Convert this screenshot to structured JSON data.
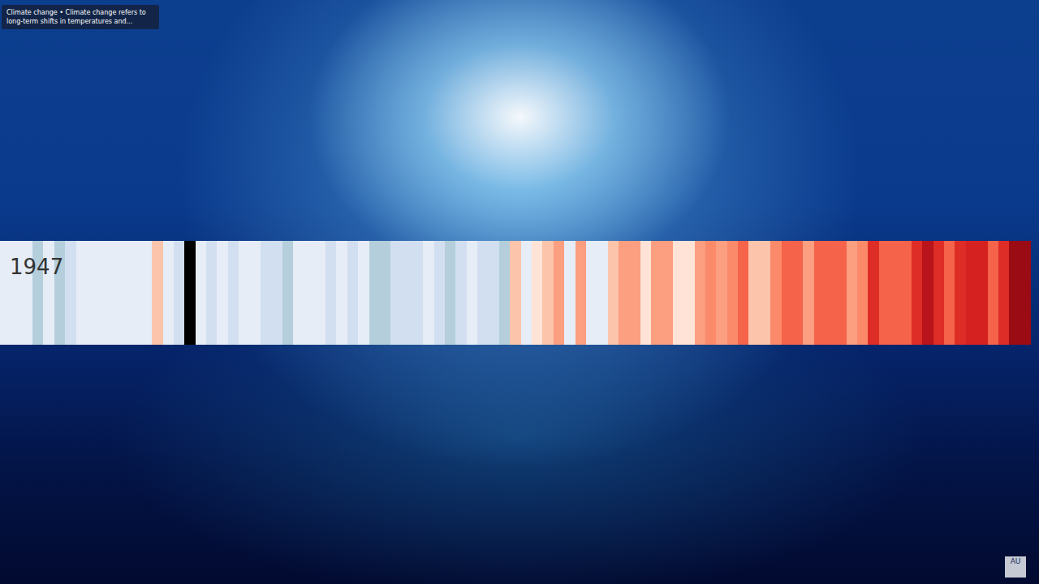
{
  "chart_data": {
    "type": "bar",
    "categories": [
      null,
      null,
      null,
      null,
      null,
      null,
      null,
      null,
      null,
      null,
      null,
      null,
      null,
      null,
      null,
      null,
      null,
      null,
      null,
      null,
      null,
      null,
      null,
      null,
      null,
      null,
      null,
      null,
      null,
      null,
      null,
      null,
      null,
      null,
      null,
      null,
      null,
      null,
      null,
      null,
      null,
      null,
      null,
      null,
      null,
      null,
      null,
      null,
      null,
      null,
      null,
      null,
      null,
      null,
      null,
      null,
      null,
      null,
      null,
      null,
      null,
      null,
      null,
      null,
      null,
      null,
      null,
      null,
      null,
      null,
      null,
      null,
      null,
      null,
      null,
      null,
      null,
      null,
      null,
      null,
      null,
      null,
      null,
      null,
      null,
      null,
      null,
      null,
      null,
      null,
      null,
      null,
      null,
      null,
      null
    ],
    "values": [
      1,
      1,
      1,
      1,
      1,
      1,
      1,
      1,
      1,
      1,
      1,
      1,
      1,
      1,
      1,
      1,
      1,
      1,
      1,
      1,
      1,
      1,
      1,
      1,
      1,
      1,
      1,
      1,
      1,
      1,
      1,
      1,
      1,
      1,
      1,
      1,
      1,
      1,
      1,
      1,
      1,
      1,
      1,
      1,
      1,
      1,
      1,
      1,
      1,
      1,
      1,
      1,
      1,
      1,
      1,
      1,
      1,
      1,
      1,
      1,
      1,
      1,
      1,
      1,
      1,
      1,
      1,
      1,
      1,
      1,
      1,
      1,
      1,
      1,
      1,
      1,
      1,
      1,
      1,
      1,
      1,
      1,
      1,
      1,
      1,
      1,
      1,
      1,
      1,
      1,
      1,
      1,
      1,
      1,
      1
    ],
    "colors": [
      "#e6edf7",
      "#e6edf7",
      "#e6edf7",
      "#b4cfdb",
      "#e6edf7",
      "#b4cfdb",
      "#d2dff0",
      "#e6edf7",
      "#e6edf7",
      "#e6edf7",
      "#e6edf7",
      "#e6edf7",
      "#e6edf7",
      "#e6edf7",
      "#fcc5ab",
      "#e6edf7",
      "#d2dff0",
      "#000000",
      "#e6edf7",
      "#d2dff0",
      "#e6edf7",
      "#d2dff0",
      "#e6edf7",
      "#e6edf7",
      "#d2dff0",
      "#d2dff0",
      "#b4cfdb",
      "#e6edf7",
      "#e6edf7",
      "#e6edf7",
      "#d2dff0",
      "#e6edf7",
      "#d2dff0",
      "#e6edf7",
      "#b4cfdb",
      "#b4cfdb",
      "#d2dff0",
      "#d2dff0",
      "#d2dff0",
      "#e6edf7",
      "#d2dff0",
      "#b4cfdb",
      "#d2dff0",
      "#e6edf7",
      "#d2dff0",
      "#d2dff0",
      "#b4cfdb",
      "#fcc5ab",
      "#e6edf7",
      "#fee3d6",
      "#fcc5ab",
      "#fc9e80",
      "#e6edf7",
      "#fc9e80",
      "#e6edf7",
      "#e6edf7",
      "#fcc5ab",
      "#fc9e80",
      "#fc9e80",
      "#fee3d6",
      "#fc9e80",
      "#fc9e80",
      "#fee3d6",
      "#fee3d6",
      "#fc9e80",
      "#fa8a6a",
      "#fc9e80",
      "#fa8a6a",
      "#f4634a",
      "#fcc5ab",
      "#fcc5ab",
      "#fa8a6a",
      "#f4634a",
      "#f4634a",
      "#fc9e80",
      "#f4634a",
      "#f4634a",
      "#f4634a",
      "#fc9e80",
      "#fa8a6a",
      "#de2d26",
      "#f4634a",
      "#f4634a",
      "#f4634a",
      "#de2d26",
      "#b9131b",
      "#de2d26",
      "#f4634a",
      "#de2d26",
      "#d52221",
      "#d52221",
      "#f4634a",
      "#de2d26",
      "#9b0b13",
      "#9b0b13"
    ],
    "ylim": [
      0,
      1
    ],
    "tick_labels": false,
    "grid": false,
    "annotations": [
      "1947"
    ]
  },
  "overlay": {
    "caption": [
      "Climate change • Climate change refers to",
      "long-term shifts in temperatures and..."
    ],
    "watermark": "AU"
  }
}
